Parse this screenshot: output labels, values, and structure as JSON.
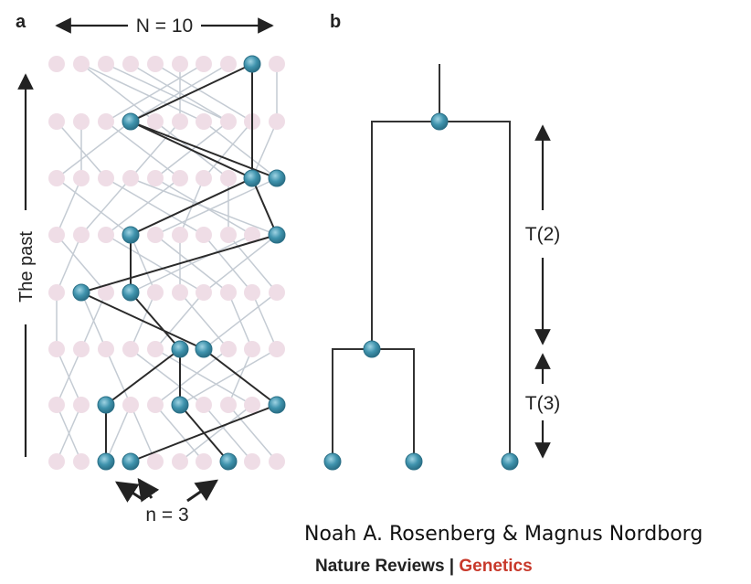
{
  "panels": {
    "a": {
      "label": "a",
      "population_label": "N = 10",
      "time_axis_label": "The past",
      "sample_label": "n = 3"
    },
    "b": {
      "label": "b",
      "interval_upper": "T(2)",
      "interval_lower": "T(3)"
    }
  },
  "credit": "Noah A. Rosenberg & Magnus Nordborg",
  "journal": {
    "name": "Nature Reviews",
    "separator": " | ",
    "section": "Genetics"
  },
  "colors": {
    "background_individual": "#efdde6",
    "lineage_individual": "#3f93ad",
    "background_link": "#c4cbd3",
    "lineage_link": "#2a2a2a"
  }
}
